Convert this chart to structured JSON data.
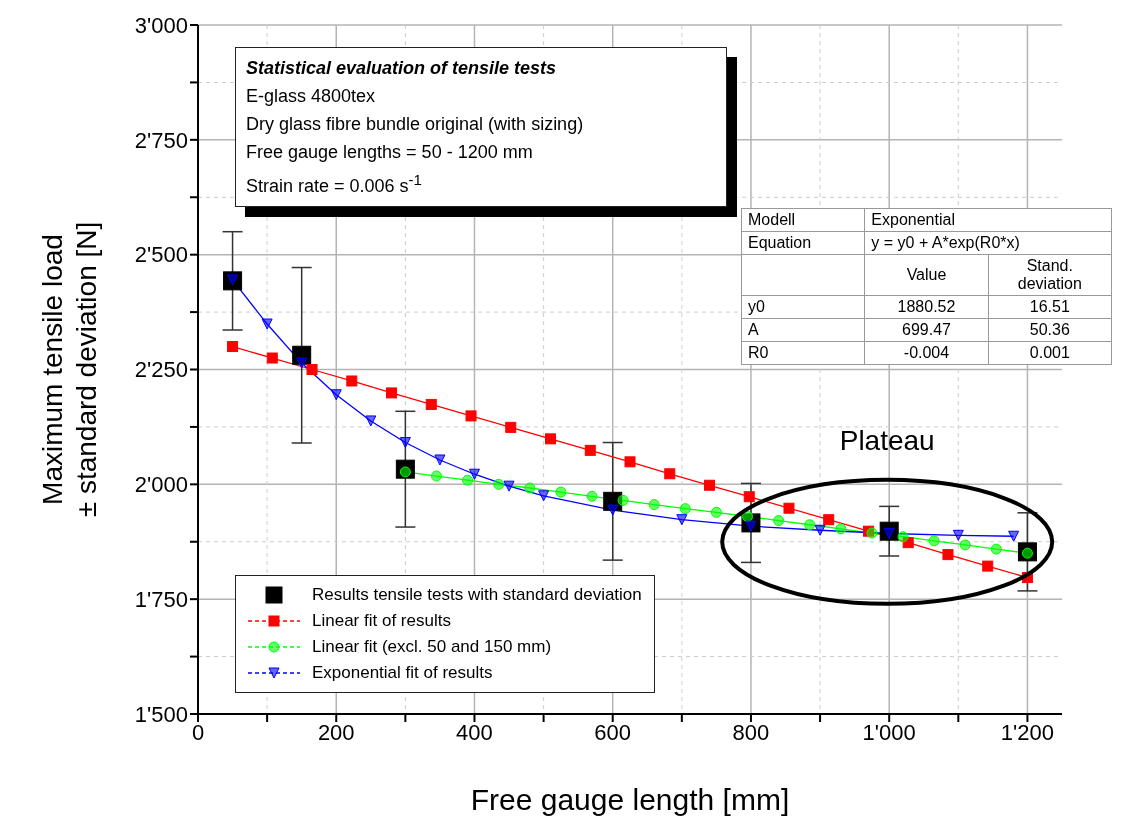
{
  "chart_data": {
    "type": "line",
    "title": "Statistical evaluation of tensile tests",
    "xlabel": "Free gauge length [mm]",
    "ylabel": "Maximum tensile load\n± standard deviation [N]",
    "xlim": [
      0,
      1250
    ],
    "ylim": [
      1500,
      3000
    ],
    "xticks": [
      0,
      {
        "value": 100,
        "label": null
      },
      200,
      {
        "value": 300,
        "label": null
      },
      400,
      {
        "value": 500,
        "label": null
      },
      600,
      {
        "value": 700,
        "label": null
      },
      800,
      {
        "value": 900,
        "label": null
      },
      {
        "value": 1000,
        "label": "1'000"
      },
      {
        "value": 1100,
        "label": null
      },
      {
        "value": 1200,
        "label": "1'200"
      }
    ],
    "yticks": [
      {
        "value": 1500,
        "label": "1'500"
      },
      {
        "value": 1625,
        "label": null
      },
      {
        "value": 1750,
        "label": "1'750"
      },
      {
        "value": 1875,
        "label": null
      },
      {
        "value": 2000,
        "label": "2'000"
      },
      {
        "value": 2125,
        "label": null
      },
      {
        "value": 2250,
        "label": "2'250"
      },
      {
        "value": 2375,
        "label": null
      },
      {
        "value": 2500,
        "label": "2'500"
      },
      {
        "value": 2625,
        "label": null
      },
      {
        "value": 2750,
        "label": "2'750"
      },
      {
        "value": 2875,
        "label": null
      },
      {
        "value": 3000,
        "label": "3'000"
      }
    ],
    "grid": true,
    "legend": "bottom left",
    "series": [
      {
        "name": "Results tensile tests with standard deviation",
        "type": "scatter",
        "marker": "square",
        "color": "#000000",
        "x": [
          50,
          150,
          300,
          600,
          800,
          1000,
          1200
        ],
        "values": [
          2443,
          2281,
          2033,
          1963,
          1916,
          1898,
          1853
        ],
        "errors": [
          107,
          191,
          126,
          128,
          86,
          54,
          85
        ]
      },
      {
        "name": "Linear fit of results",
        "marker": "square",
        "color": "#ff0000",
        "x": [
          50,
          107.5,
          165,
          222.5,
          280,
          337.5,
          395,
          452.5,
          510,
          567.5,
          625,
          682.5,
          740,
          797.5,
          855,
          912.5,
          970,
          1027.5,
          1085,
          1142.5,
          1200
        ],
        "values": [
          2300,
          2275,
          2250,
          2225,
          2199,
          2174,
          2149,
          2124,
          2099,
          2074,
          2049,
          2023,
          1998,
          1973,
          1948,
          1923,
          1898,
          1873,
          1847,
          1822,
          1797
        ]
      },
      {
        "name": "Linear fit (excl. 50 and 150 mm)",
        "marker": "circle",
        "color": "#00ff00",
        "x": [
          300,
          345,
          390,
          435,
          480,
          525,
          570,
          615,
          660,
          705,
          750,
          795,
          840,
          885,
          930,
          975,
          1020,
          1065,
          1110,
          1155,
          1200
        ],
        "values": [
          2027,
          2018,
          2009,
          2000,
          1992,
          1983,
          1974,
          1965,
          1956,
          1947,
          1939,
          1930,
          1921,
          1912,
          1903,
          1894,
          1886,
          1877,
          1868,
          1859,
          1850
        ]
      },
      {
        "name": "Exponential fit of results",
        "marker": "triangle",
        "color": "#0000ff",
        "x": [
          50,
          100,
          150,
          200,
          250,
          300,
          350,
          400,
          450,
          500,
          600,
          700,
          800,
          900,
          1000,
          1100,
          1180
        ],
        "values": [
          2445,
          2349,
          2264,
          2195,
          2138,
          2091,
          2053,
          2022,
          1996,
          1975,
          1944,
          1923,
          1909,
          1900,
          1893,
          1889,
          1887
        ]
      }
    ],
    "annotations": [
      "E-glass 4800tex",
      "Dry glass fibre bundle original (with sizing)",
      "Free gauge lengths = 50 - 1200 mm",
      "Strain rate = 0.006 s$^{-1}$",
      "Modell",
      "Exponential",
      "Equation",
      "y = y0 + A*exp(R0*x)",
      "Value",
      "Stand. deviation",
      "y0",
      "1880.52",
      "16.51",
      "A",
      "699.47",
      "50.36",
      "R0",
      "-0.004",
      "0.001",
      {
        "text": "Plateau",
        "x": 1000,
        "y": 1890
      }
    ]
  }
}
